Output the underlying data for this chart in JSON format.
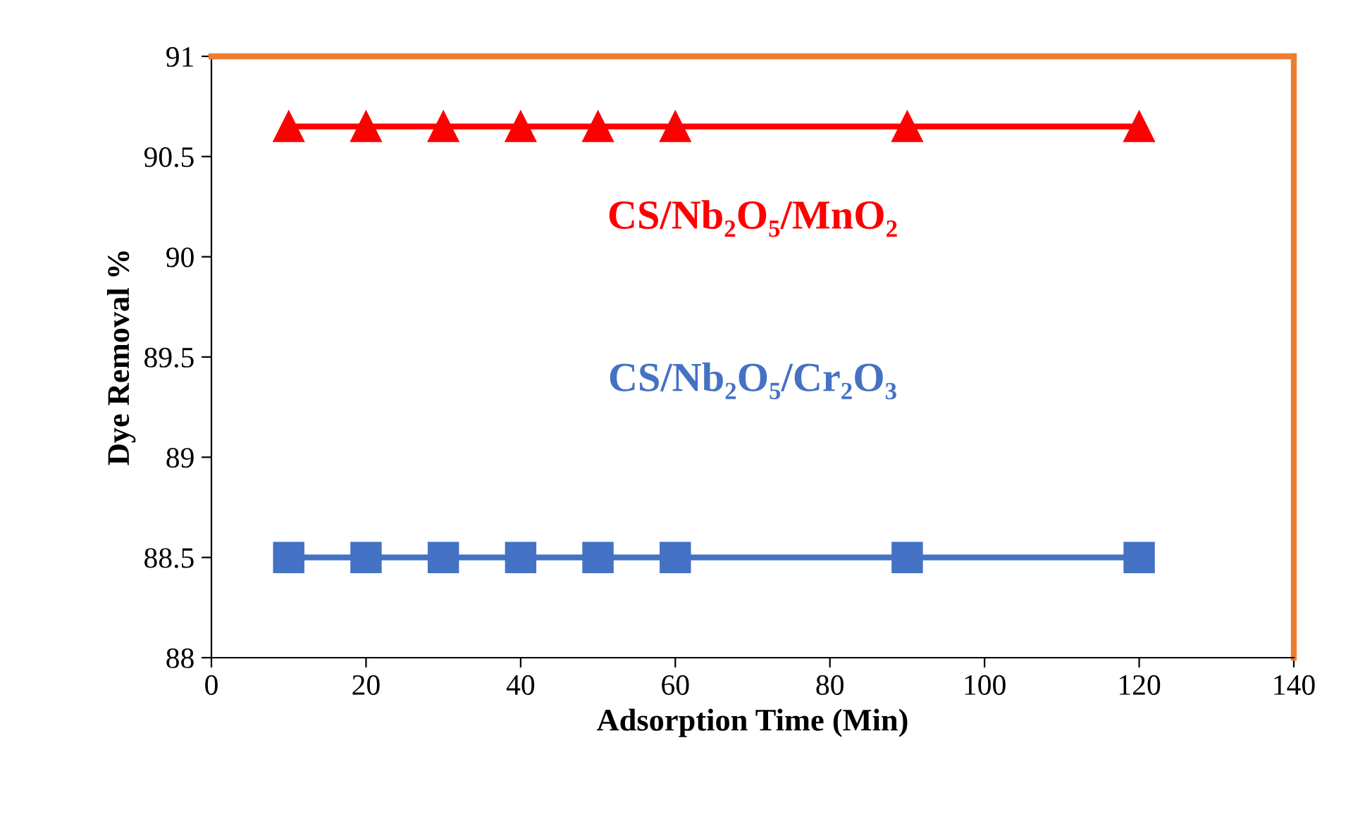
{
  "chart_data": {
    "type": "line",
    "xlabel": "Adsorption Time (Min)",
    "ylabel": "Dye Removal %",
    "x": [
      10,
      20,
      30,
      40,
      50,
      60,
      90,
      120
    ],
    "series": [
      {
        "name": "CS/Nb₂O₅/MnO₂",
        "color": "#ff0000",
        "marker": "triangle",
        "values": [
          90.65,
          90.65,
          90.65,
          90.65,
          90.65,
          90.65,
          90.65,
          90.65
        ]
      },
      {
        "name": "CS/Nb₂O₅/Cr₂O₃",
        "color": "#4472c4",
        "marker": "square",
        "values": [
          88.5,
          88.5,
          88.5,
          88.5,
          88.5,
          88.5,
          88.5,
          88.5
        ]
      }
    ],
    "xlim": [
      0,
      140
    ],
    "xticks": [
      0,
      20,
      40,
      60,
      80,
      100,
      120,
      140
    ],
    "ylim": [
      88,
      91
    ],
    "yticks": [
      88,
      88.5,
      89,
      89.5,
      90,
      90.5,
      91
    ],
    "grid": false,
    "legend": false,
    "line_style": "solid"
  }
}
